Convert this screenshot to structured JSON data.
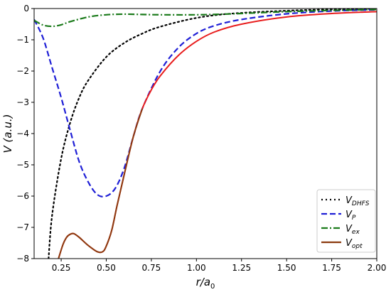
{
  "chart_data": {
    "type": "line",
    "title": "",
    "xlabel": "r/a",
    "xlabel_sub": "0",
    "ylabel": "V (a.u.)",
    "xlim": [
      0.1,
      2.0
    ],
    "ylim": [
      -8,
      0
    ],
    "xticks": [
      "0.25",
      "0.50",
      "0.75",
      "1.00",
      "1.25",
      "1.50",
      "1.75",
      "2.00"
    ],
    "yticks": [
      "0",
      "−1",
      "−2",
      "−3",
      "−4",
      "−5",
      "−6",
      "−7",
      "−8"
    ],
    "grid": false,
    "legend_position": "lower-right",
    "series": [
      {
        "name": "V",
        "sub": "DHFS",
        "color": "#000000",
        "style": "dotted",
        "x": [
          0.18,
          0.2,
          0.25,
          0.3,
          0.35,
          0.4,
          0.5,
          0.6,
          0.7,
          0.8,
          1.0,
          1.2,
          1.5,
          1.75,
          2.0
        ],
        "y": [
          -8.0,
          -6.6,
          -4.8,
          -3.65,
          -2.85,
          -2.3,
          -1.55,
          -1.1,
          -0.8,
          -0.58,
          -0.3,
          -0.16,
          -0.07,
          -0.03,
          -0.01
        ]
      },
      {
        "name": "V",
        "sub": "P",
        "color": "#1f1fd6",
        "style": "dashed",
        "x": [
          0.1,
          0.15,
          0.2,
          0.25,
          0.3,
          0.35,
          0.4,
          0.45,
          0.5,
          0.55,
          0.6,
          0.65,
          0.7,
          0.8,
          0.9,
          1.0,
          1.1,
          1.25,
          1.5,
          1.75,
          2.0
        ],
        "y": [
          -0.35,
          -0.95,
          -1.9,
          -2.85,
          -3.9,
          -4.9,
          -5.55,
          -5.95,
          -6.0,
          -5.75,
          -5.1,
          -4.1,
          -3.2,
          -2.0,
          -1.25,
          -0.8,
          -0.55,
          -0.35,
          -0.17,
          -0.08,
          -0.04
        ]
      },
      {
        "name": "V",
        "sub": "ex",
        "color": "#1a7a1a",
        "style": "dashdot",
        "x": [
          0.1,
          0.15,
          0.2,
          0.25,
          0.3,
          0.4,
          0.5,
          0.6,
          0.7,
          0.8,
          1.0,
          1.2,
          1.5,
          1.75,
          2.0
        ],
        "y": [
          -0.38,
          -0.53,
          -0.57,
          -0.52,
          -0.42,
          -0.27,
          -0.2,
          -0.18,
          -0.19,
          -0.2,
          -0.2,
          -0.17,
          -0.1,
          -0.06,
          -0.03
        ]
      },
      {
        "name": "V",
        "sub": "opt",
        "color": "#8b3a0f",
        "color_tail": "#e81c1c",
        "style": "solid",
        "x": [
          0.235,
          0.26,
          0.28,
          0.3,
          0.32,
          0.35,
          0.4,
          0.45,
          0.48,
          0.5,
          0.53,
          0.56,
          0.6,
          0.65,
          0.7,
          0.75,
          0.8,
          0.9,
          1.0,
          1.1,
          1.25,
          1.5,
          1.75,
          2.0
        ],
        "y": [
          -8.0,
          -7.55,
          -7.32,
          -7.22,
          -7.2,
          -7.32,
          -7.58,
          -7.78,
          -7.78,
          -7.6,
          -7.1,
          -6.3,
          -5.3,
          -4.1,
          -3.2,
          -2.6,
          -2.15,
          -1.5,
          -1.05,
          -0.75,
          -0.5,
          -0.27,
          -0.16,
          -0.1
        ]
      }
    ]
  }
}
